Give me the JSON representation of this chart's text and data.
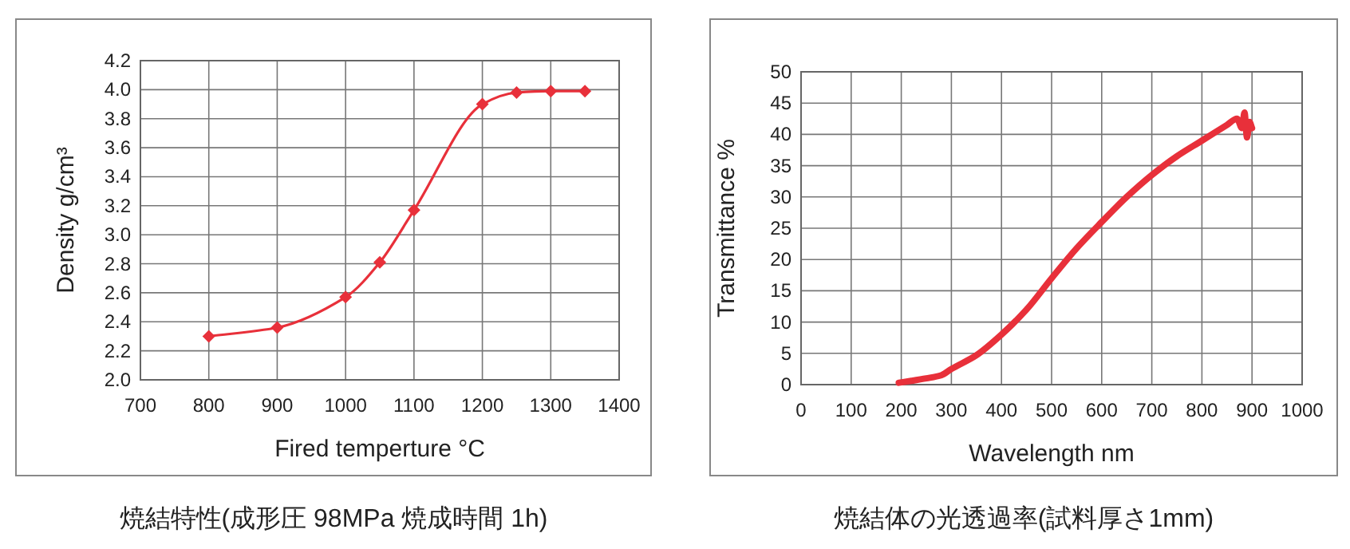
{
  "chart_data": [
    {
      "type": "line",
      "title": "焼結特性(成形圧 98MPa  焼成時間 1h)",
      "xlabel": "Fired temperture  °C",
      "ylabel": "Density  g/cm³",
      "x": [
        800,
        900,
        1000,
        1050,
        1100,
        1200,
        1250,
        1300,
        1350
      ],
      "series": [
        {
          "color": "#e8303a",
          "values": [
            2.3,
            2.36,
            2.57,
            2.81,
            3.17,
            3.9,
            3.98,
            3.99,
            3.99
          ]
        }
      ],
      "xlim": [
        700,
        1400
      ],
      "ylim": [
        2.0,
        4.2
      ],
      "xticks": [
        700,
        800,
        900,
        1000,
        1100,
        1200,
        1300,
        1400
      ],
      "yticks": [
        {
          "value": 2.0,
          "label": "2.0"
        },
        2.2,
        2.4,
        2.6,
        2.8,
        {
          "value": 3.0,
          "label": "3.0"
        },
        3.2,
        3.4,
        3.6,
        3.8,
        {
          "value": 4.0,
          "label": "4.0"
        },
        4.2
      ],
      "grid": true,
      "marker": "diamond"
    },
    {
      "type": "line",
      "title": "焼結体の光透過率(試料厚さ1mm)",
      "xlabel": "Wavelength   nm",
      "ylabel": "Transmittance %",
      "x": [
        195,
        220,
        250,
        280,
        300,
        350,
        400,
        450,
        500,
        550,
        600,
        650,
        700,
        750,
        800,
        850,
        870,
        880,
        885,
        890,
        895,
        900
      ],
      "series": [
        {
          "color": "#e8303a",
          "values": [
            0.3,
            0.6,
            1.0,
            1.5,
            2.5,
            4.7,
            8,
            12,
            17,
            21.8,
            26,
            30,
            33.5,
            36.5,
            39,
            41.5,
            42.5,
            41,
            43.5,
            39.5,
            42,
            41
          ]
        }
      ],
      "xlim": [
        0,
        1000
      ],
      "ylim": [
        0,
        50
      ],
      "xticks": [
        0,
        100,
        200,
        300,
        400,
        500,
        600,
        700,
        800,
        900,
        1000
      ],
      "yticks": [
        0,
        5,
        10,
        15,
        20,
        25,
        30,
        35,
        40,
        45,
        50
      ],
      "grid": true,
      "marker": "none"
    }
  ]
}
